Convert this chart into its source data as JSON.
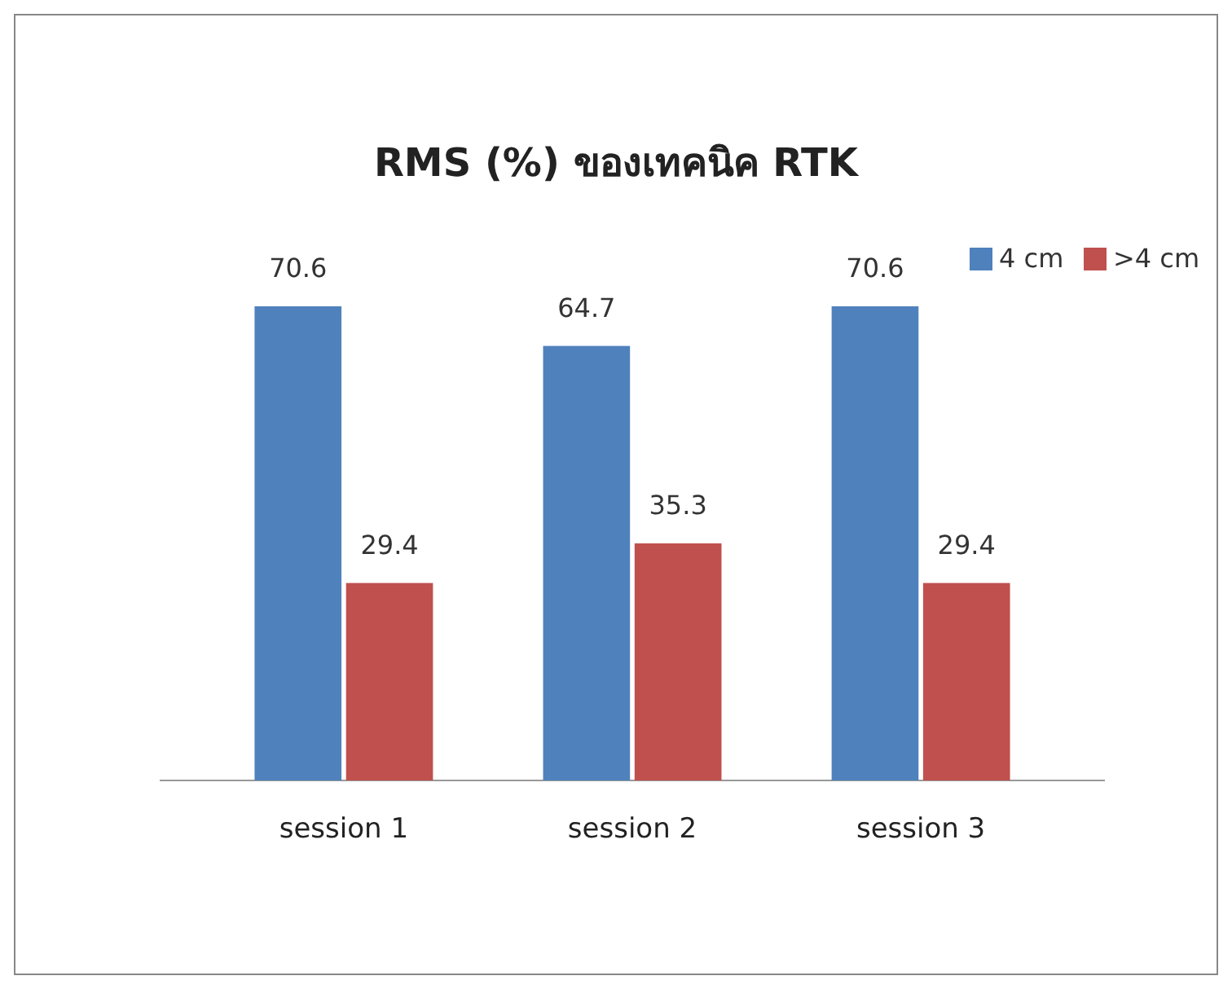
{
  "chart_data": {
    "type": "bar",
    "title": "RMS (%) ของเทคนิค RTK",
    "categories": [
      "session 1",
      "session 2",
      "session 3"
    ],
    "series": [
      {
        "name": "4 cm",
        "color": "#4f81bd",
        "values": [
          70.6,
          64.7,
          70.6
        ]
      },
      {
        "name": ">4 cm",
        "color": "#c0504d",
        "values": [
          29.4,
          35.3,
          29.4
        ]
      }
    ],
    "data_labels": true,
    "legend": "top right"
  }
}
